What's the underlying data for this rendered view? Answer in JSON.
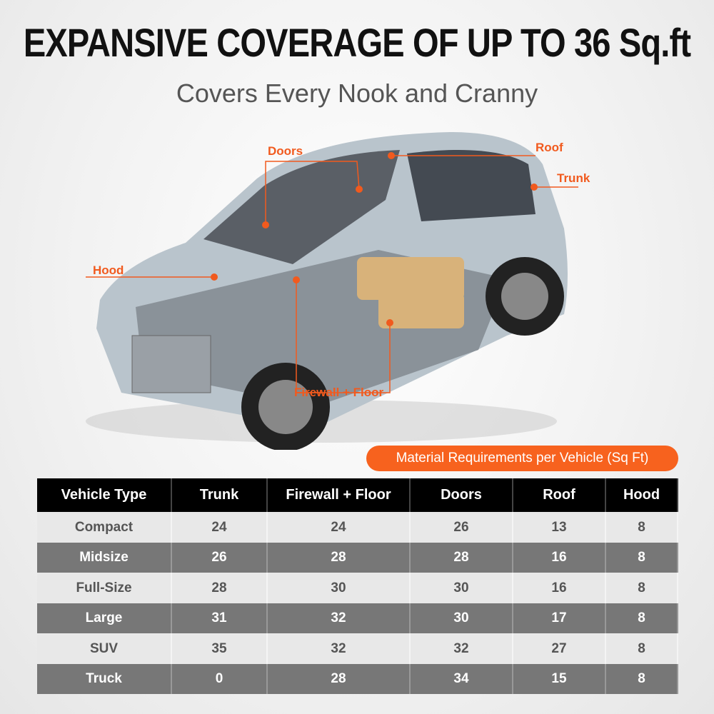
{
  "header": {
    "title": "EXPANSIVE COVERAGE OF UP TO 36 Sq.ft",
    "subtitle": "Covers Every Nook and Cranny"
  },
  "callouts": {
    "doors": "Doors",
    "roof": "Roof",
    "trunk": "Trunk",
    "hood": "Hood",
    "firewall_floor": "Firewall + Floor"
  },
  "accent_color": "#f7621e",
  "table": {
    "caption": "Material Requirements per Vehicle (Sq Ft)",
    "columns": [
      "Vehicle Type",
      "Trunk",
      "Firewall + Floor",
      "Doors",
      "Roof",
      "Hood"
    ],
    "rows": [
      [
        "Compact",
        "24",
        "24",
        "26",
        "13",
        "8"
      ],
      [
        "Midsize",
        "26",
        "28",
        "28",
        "16",
        "8"
      ],
      [
        "Full-Size",
        "28",
        "30",
        "30",
        "16",
        "8"
      ],
      [
        "Large",
        "31",
        "32",
        "30",
        "17",
        "8"
      ],
      [
        "SUV",
        "35",
        "32",
        "32",
        "27",
        "8"
      ],
      [
        "Truck",
        "0",
        "28",
        "34",
        "15",
        "8"
      ]
    ]
  }
}
